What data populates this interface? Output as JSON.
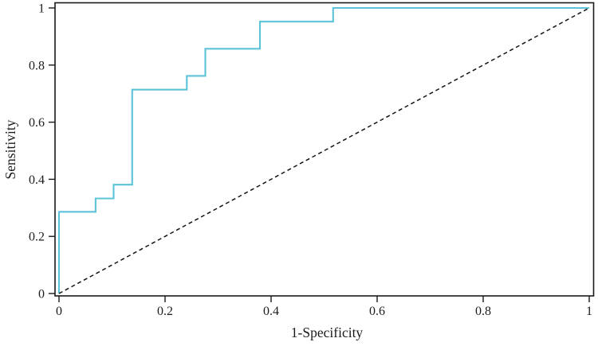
{
  "figure": {
    "background_color": "#ffffff",
    "plot_border_color": "#1a1a1a",
    "text_color": "#1c1c1c"
  },
  "chart_data": {
    "type": "line",
    "subtype": "roc-step-curve",
    "title": "",
    "xlabel": "1-Specificity",
    "ylabel": "Sensitivity",
    "xlim": [
      0,
      1
    ],
    "ylim": [
      0,
      1
    ],
    "grid": false,
    "legend": false,
    "x_ticks": [
      0,
      0.2,
      0.4,
      0.6,
      0.8,
      1
    ],
    "x_tick_labels": [
      "0",
      "0.2",
      "0.4",
      "0.6",
      "0.8",
      "1"
    ],
    "y_ticks": [
      0,
      0.2,
      0.4,
      0.6,
      0.8,
      1
    ],
    "y_tick_labels": [
      "0",
      "0.2",
      "0.4",
      "0.6",
      "0.8",
      "1"
    ],
    "series": [
      {
        "name": "roc-curve",
        "color": "#5cc3d9",
        "style": "solid",
        "width": 2.1,
        "points": [
          [
            0,
            0
          ],
          [
            0,
            0.286
          ],
          [
            0.069,
            0.286
          ],
          [
            0.069,
            0.333
          ],
          [
            0.103,
            0.333
          ],
          [
            0.103,
            0.381
          ],
          [
            0.138,
            0.381
          ],
          [
            0.138,
            0.714
          ],
          [
            0.241,
            0.714
          ],
          [
            0.241,
            0.762
          ],
          [
            0.276,
            0.762
          ],
          [
            0.276,
            0.857
          ],
          [
            0.379,
            0.857
          ],
          [
            0.379,
            0.952
          ],
          [
            0.517,
            0.952
          ],
          [
            0.517,
            1
          ],
          [
            1,
            1
          ]
        ]
      },
      {
        "name": "reference-diagonal",
        "color": "#141414",
        "style": "dashed",
        "width": 1.5,
        "points": [
          [
            0,
            0
          ],
          [
            1,
            1
          ]
        ]
      }
    ]
  }
}
